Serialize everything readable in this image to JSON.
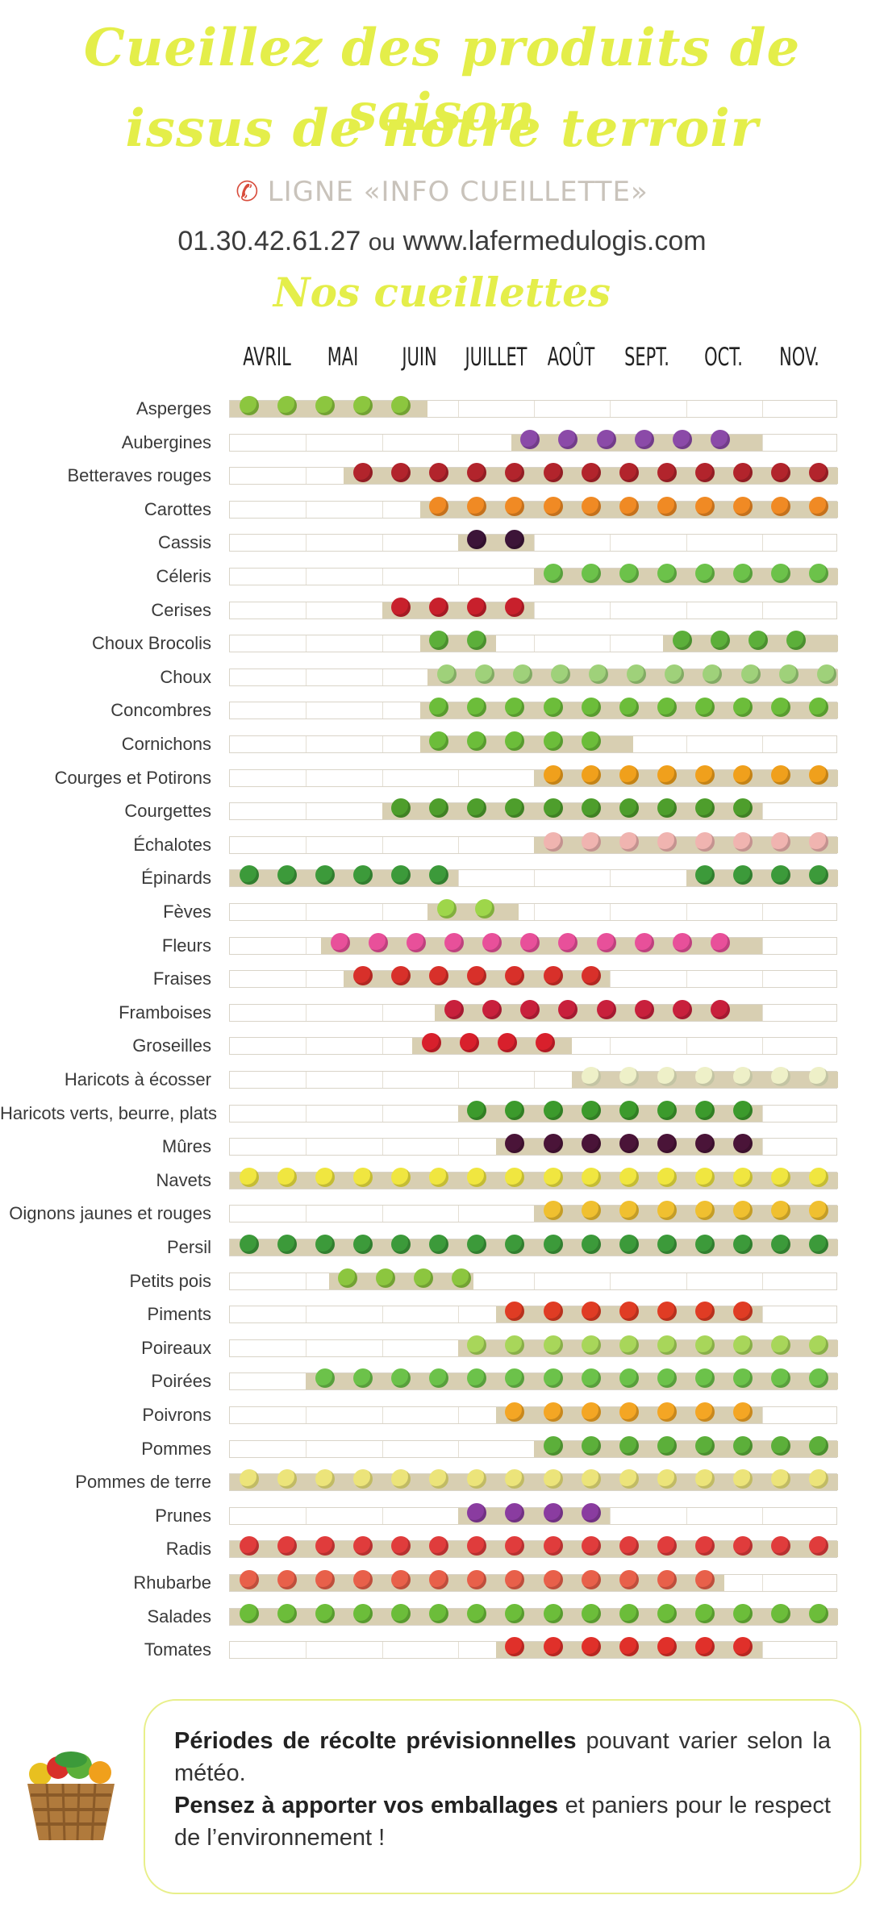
{
  "header": {
    "title_line1": "Cueillez des produits de saison",
    "title_line2": "issus de notre terroir",
    "info_line": "LIGNE «INFO CUEILLETTE»",
    "phone_icon": "phone-icon",
    "phone": "01.30.42.61.27",
    "or_text": "ou",
    "website": "www.lafermedulogis.com",
    "section_title": "Nos cueillettes"
  },
  "months": [
    "AVRIL",
    "MAI",
    "JUIN",
    "JUILLET",
    "AOÛT",
    "SEPT.",
    "OCT.",
    "NOV."
  ],
  "colors": {
    "title": "#e4ee4a",
    "fill": "#d8cfb2",
    "track_border": "#d9d4c8"
  },
  "crops": [
    {
      "name": "Asperges",
      "start": 0.0,
      "end": 2.6,
      "color": "#8cc63f",
      "icon": "asparagus-icon"
    },
    {
      "name": "Aubergines",
      "start": 3.7,
      "end": 7.0,
      "color": "#8b4aa8",
      "icon": "eggplant-icon"
    },
    {
      "name": "Betteraves rouges",
      "start": 1.5,
      "end": 8.0,
      "color": "#b2242c",
      "icon": "beetroot-icon"
    },
    {
      "name": "Carottes",
      "start": 2.5,
      "end": 8.0,
      "color": "#f08a24",
      "icon": "carrot-icon"
    },
    {
      "name": "Cassis",
      "start": 3.0,
      "end": 4.0,
      "color": "#3c1438",
      "icon": "blackcurrant-icon"
    },
    {
      "name": "Céleris",
      "start": 4.0,
      "end": 8.0,
      "color": "#6cc24a",
      "icon": "celery-icon"
    },
    {
      "name": "Cerises",
      "start": 2.0,
      "end": 4.0,
      "color": "#c8202c",
      "icon": "cherry-icon"
    },
    {
      "name": "Choux Brocolis",
      "start": 2.5,
      "end": 3.5,
      "start2": 5.7,
      "end2": 8.0,
      "color": "#5caf3a",
      "icon": "broccoli-icon"
    },
    {
      "name": "Choux",
      "start": 2.6,
      "end": 8.0,
      "color": "#9fd17a",
      "icon": "cabbage-icon"
    },
    {
      "name": "Concombres",
      "start": 2.5,
      "end": 8.0,
      "color": "#6cbd3a",
      "icon": "cucumber-icon"
    },
    {
      "name": "Cornichons",
      "start": 2.5,
      "end": 5.3,
      "color": "#6cbd3a",
      "icon": "gherkin-icon"
    },
    {
      "name": "Courges et Potirons",
      "start": 4.0,
      "end": 8.0,
      "color": "#f0a01c",
      "icon": "pumpkin-icon"
    },
    {
      "name": "Courgettes",
      "start": 2.0,
      "end": 7.0,
      "color": "#4e9e2c",
      "icon": "zucchini-icon"
    },
    {
      "name": "Échalotes",
      "start": 4.0,
      "end": 8.0,
      "color": "#f0b4b0",
      "icon": "shallot-icon"
    },
    {
      "name": "Épinards",
      "start": 0.0,
      "end": 3.0,
      "start2": 6.0,
      "end2": 8.0,
      "color": "#3c9a3a",
      "icon": "spinach-icon"
    },
    {
      "name": "Fèves",
      "start": 2.6,
      "end": 3.8,
      "color": "#9ed64a",
      "icon": "broad-bean-icon"
    },
    {
      "name": "Fleurs",
      "start": 1.2,
      "end": 7.0,
      "color": "#e8509a",
      "icon": "flower-icon"
    },
    {
      "name": "Fraises",
      "start": 1.5,
      "end": 5.0,
      "color": "#d8302a",
      "icon": "strawberry-icon"
    },
    {
      "name": "Framboises",
      "start": 2.7,
      "end": 7.0,
      "color": "#c8203c",
      "icon": "raspberry-icon"
    },
    {
      "name": "Groseilles",
      "start": 2.4,
      "end": 4.5,
      "color": "#d8202c",
      "icon": "redcurrant-icon"
    },
    {
      "name": "Haricots à écosser",
      "start": 4.5,
      "end": 8.0,
      "color": "#eef0c8",
      "icon": "shelling-bean-icon"
    },
    {
      "name": "Haricots verts, beurre, plats",
      "start": 3.0,
      "end": 7.0,
      "color": "#3c9a2c",
      "icon": "green-bean-icon"
    },
    {
      "name": "Mûres",
      "start": 3.5,
      "end": 7.0,
      "color": "#4a1438",
      "icon": "blackberry-icon"
    },
    {
      "name": "Navets",
      "start": 0.0,
      "end": 8.0,
      "color": "#f0e640",
      "icon": "turnip-icon"
    },
    {
      "name": "Oignons jaunes et rouges",
      "start": 4.0,
      "end": 8.0,
      "color": "#f0c030",
      "icon": "onion-icon"
    },
    {
      "name": "Persil",
      "start": 0.0,
      "end": 8.0,
      "color": "#3c9a3a",
      "icon": "parsley-icon"
    },
    {
      "name": "Petits pois",
      "start": 1.3,
      "end": 3.2,
      "color": "#8cc63f",
      "icon": "pea-icon"
    },
    {
      "name": "Piments",
      "start": 3.5,
      "end": 7.0,
      "color": "#e03c24",
      "icon": "chili-icon"
    },
    {
      "name": "Poireaux",
      "start": 3.0,
      "end": 8.0,
      "color": "#a8d65a",
      "icon": "leek-icon"
    },
    {
      "name": "Poirées",
      "start": 1.0,
      "end": 8.0,
      "color": "#6cc24a",
      "icon": "chard-icon"
    },
    {
      "name": "Poivrons",
      "start": 3.5,
      "end": 7.0,
      "color": "#f4a624",
      "icon": "pepper-icon"
    },
    {
      "name": "Pommes",
      "start": 4.0,
      "end": 8.0,
      "color": "#5caf3a",
      "icon": "apple-icon"
    },
    {
      "name": "Pommes de terre",
      "start": 0.0,
      "end": 8.0,
      "color": "#ece47a",
      "icon": "potato-icon"
    },
    {
      "name": "Prunes",
      "start": 3.0,
      "end": 5.0,
      "color": "#8a3ca0",
      "icon": "plum-icon"
    },
    {
      "name": "Radis",
      "start": 0.0,
      "end": 8.0,
      "color": "#e03c3c",
      "icon": "radish-icon"
    },
    {
      "name": "Rhubarbe",
      "start": 0.0,
      "end": 6.5,
      "color": "#e8604a",
      "icon": "rhubarb-icon"
    },
    {
      "name": "Salades",
      "start": 0.0,
      "end": 8.0,
      "color": "#6cbd3a",
      "icon": "lettuce-icon"
    },
    {
      "name": "Tomates",
      "start": 3.5,
      "end": 7.0,
      "color": "#e0302a",
      "icon": "tomato-icon"
    }
  ],
  "footer": {
    "basket_icon": "basket-icon",
    "line1_bold": "Périodes de récolte prévisionnelles",
    "line1_rest": " pouvant varier selon la météo.",
    "line2_bold": "Pensez à apporter vos emballages",
    "line2_rest": " et paniers pour le respect de l’environnement !"
  }
}
